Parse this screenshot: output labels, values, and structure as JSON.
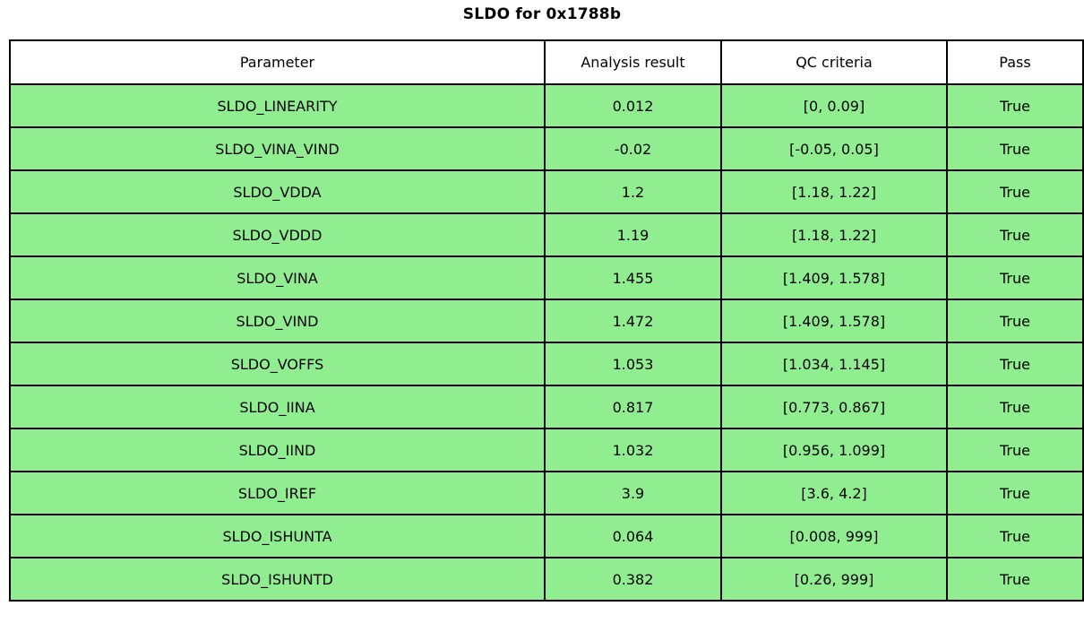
{
  "title": "SLDO for 0x1788b",
  "colors": {
    "header_bg": "#ffffff",
    "pass_row_bg": "#90EE90",
    "border": "#000000",
    "text": "#000000"
  },
  "chart_data": {
    "type": "table",
    "title": "SLDO for 0x1788b",
    "columns": [
      "Parameter",
      "Analysis result",
      "QC criteria",
      "Pass"
    ],
    "rows": [
      [
        "SLDO_LINEARITY",
        "0.012",
        "[0, 0.09]",
        "True"
      ],
      [
        "SLDO_VINA_VIND",
        "-0.02",
        "[-0.05, 0.05]",
        "True"
      ],
      [
        "SLDO_VDDA",
        "1.2",
        "[1.18, 1.22]",
        "True"
      ],
      [
        "SLDO_VDDD",
        "1.19",
        "[1.18, 1.22]",
        "True"
      ],
      [
        "SLDO_VINA",
        "1.455",
        "[1.409, 1.578]",
        "True"
      ],
      [
        "SLDO_VIND",
        "1.472",
        "[1.409, 1.578]",
        "True"
      ],
      [
        "SLDO_VOFFS",
        "1.053",
        "[1.034, 1.145]",
        "True"
      ],
      [
        "SLDO_IINA",
        "0.817",
        "[0.773, 0.867]",
        "True"
      ],
      [
        "SLDO_IIND",
        "1.032",
        "[0.956, 1.099]",
        "True"
      ],
      [
        "SLDO_IREF",
        "3.9",
        "[3.6, 4.2]",
        "True"
      ],
      [
        "SLDO_ISHUNTA",
        "0.064",
        "[0.008, 999]",
        "True"
      ],
      [
        "SLDO_ISHUNTD",
        "0.382",
        "[0.26, 999]",
        "True"
      ]
    ],
    "legend": "all data rows shaded light green indicating Pass = True",
    "grid": true
  }
}
